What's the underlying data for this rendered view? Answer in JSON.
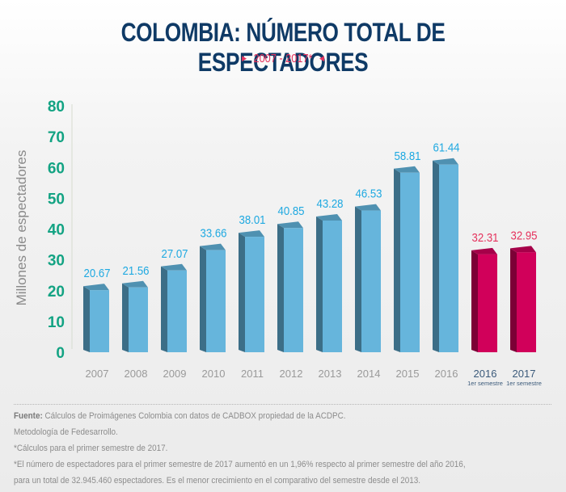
{
  "title": "COLOMBIA: NÚMERO TOTAL DE ESPECTADORES",
  "subtitle": "2007 - 2017*",
  "chart_data": {
    "type": "bar",
    "title": "COLOMBIA: NÚMERO TOTAL DE ESPECTADORES",
    "subtitle": "2007 - 2017*",
    "xlabel": "",
    "ylabel": "Millones de espectadores",
    "ylim": [
      0,
      80
    ],
    "yticks": [
      0,
      10,
      20,
      30,
      40,
      50,
      60,
      70,
      80
    ],
    "grid": false,
    "categories": [
      "2007",
      "2008",
      "2009",
      "2010",
      "2011",
      "2012",
      "2013",
      "2014",
      "2015",
      "2016",
      "2016",
      "2017"
    ],
    "category_sublabels": [
      "",
      "",
      "",
      "",
      "",
      "",
      "",
      "",
      "",
      "",
      "1er semestre",
      "1er semestre"
    ],
    "values": [
      20.67,
      21.56,
      27.07,
      33.66,
      38.01,
      40.85,
      43.28,
      46.53,
      58.81,
      61.44,
      32.31,
      32.95
    ],
    "value_labels": [
      "20.67",
      "21.56",
      "27.07",
      "33.66",
      "38.01",
      "40.85",
      "43.28",
      "46.53",
      "58.81",
      "61.44",
      "32.31",
      "32.95"
    ],
    "series_groups": [
      "annual",
      "annual",
      "annual",
      "annual",
      "annual",
      "annual",
      "annual",
      "annual",
      "annual",
      "annual",
      "semester",
      "semester"
    ],
    "colors": {
      "annual_front": "#66b5dc",
      "annual_side": "#3c6e87",
      "annual_top": "#4f91b1",
      "annual_label": "#1fa9e1",
      "semester_front": "#d1005a",
      "semester_side": "#7c0036",
      "semester_top": "#a60049",
      "semester_label": "#e5335e",
      "ytick": "#13a383",
      "xtick": "#9a9a9a",
      "xtick_semester": "#3b5a7a",
      "ylabel": "#8a8a8a"
    }
  },
  "footer": {
    "source_label": "Fuente:",
    "source_text": " Cálculos de Proimágenes Colombia con datos de CADBOX propiedad de la ACDPC.",
    "line2": "Metodología de Fedesarrollo.",
    "line3": "*Cálculos para el primer semestre de 2017.",
    "line4": "*El número de espectadores para el primer semestre de 2017 aumentó en un 1,96% respecto al primer semestre del año 2016,",
    "line5": "para un total de 32.945.460 espectadores. Es el menor crecimiento en el comparativo del semestre desde el 2013."
  }
}
